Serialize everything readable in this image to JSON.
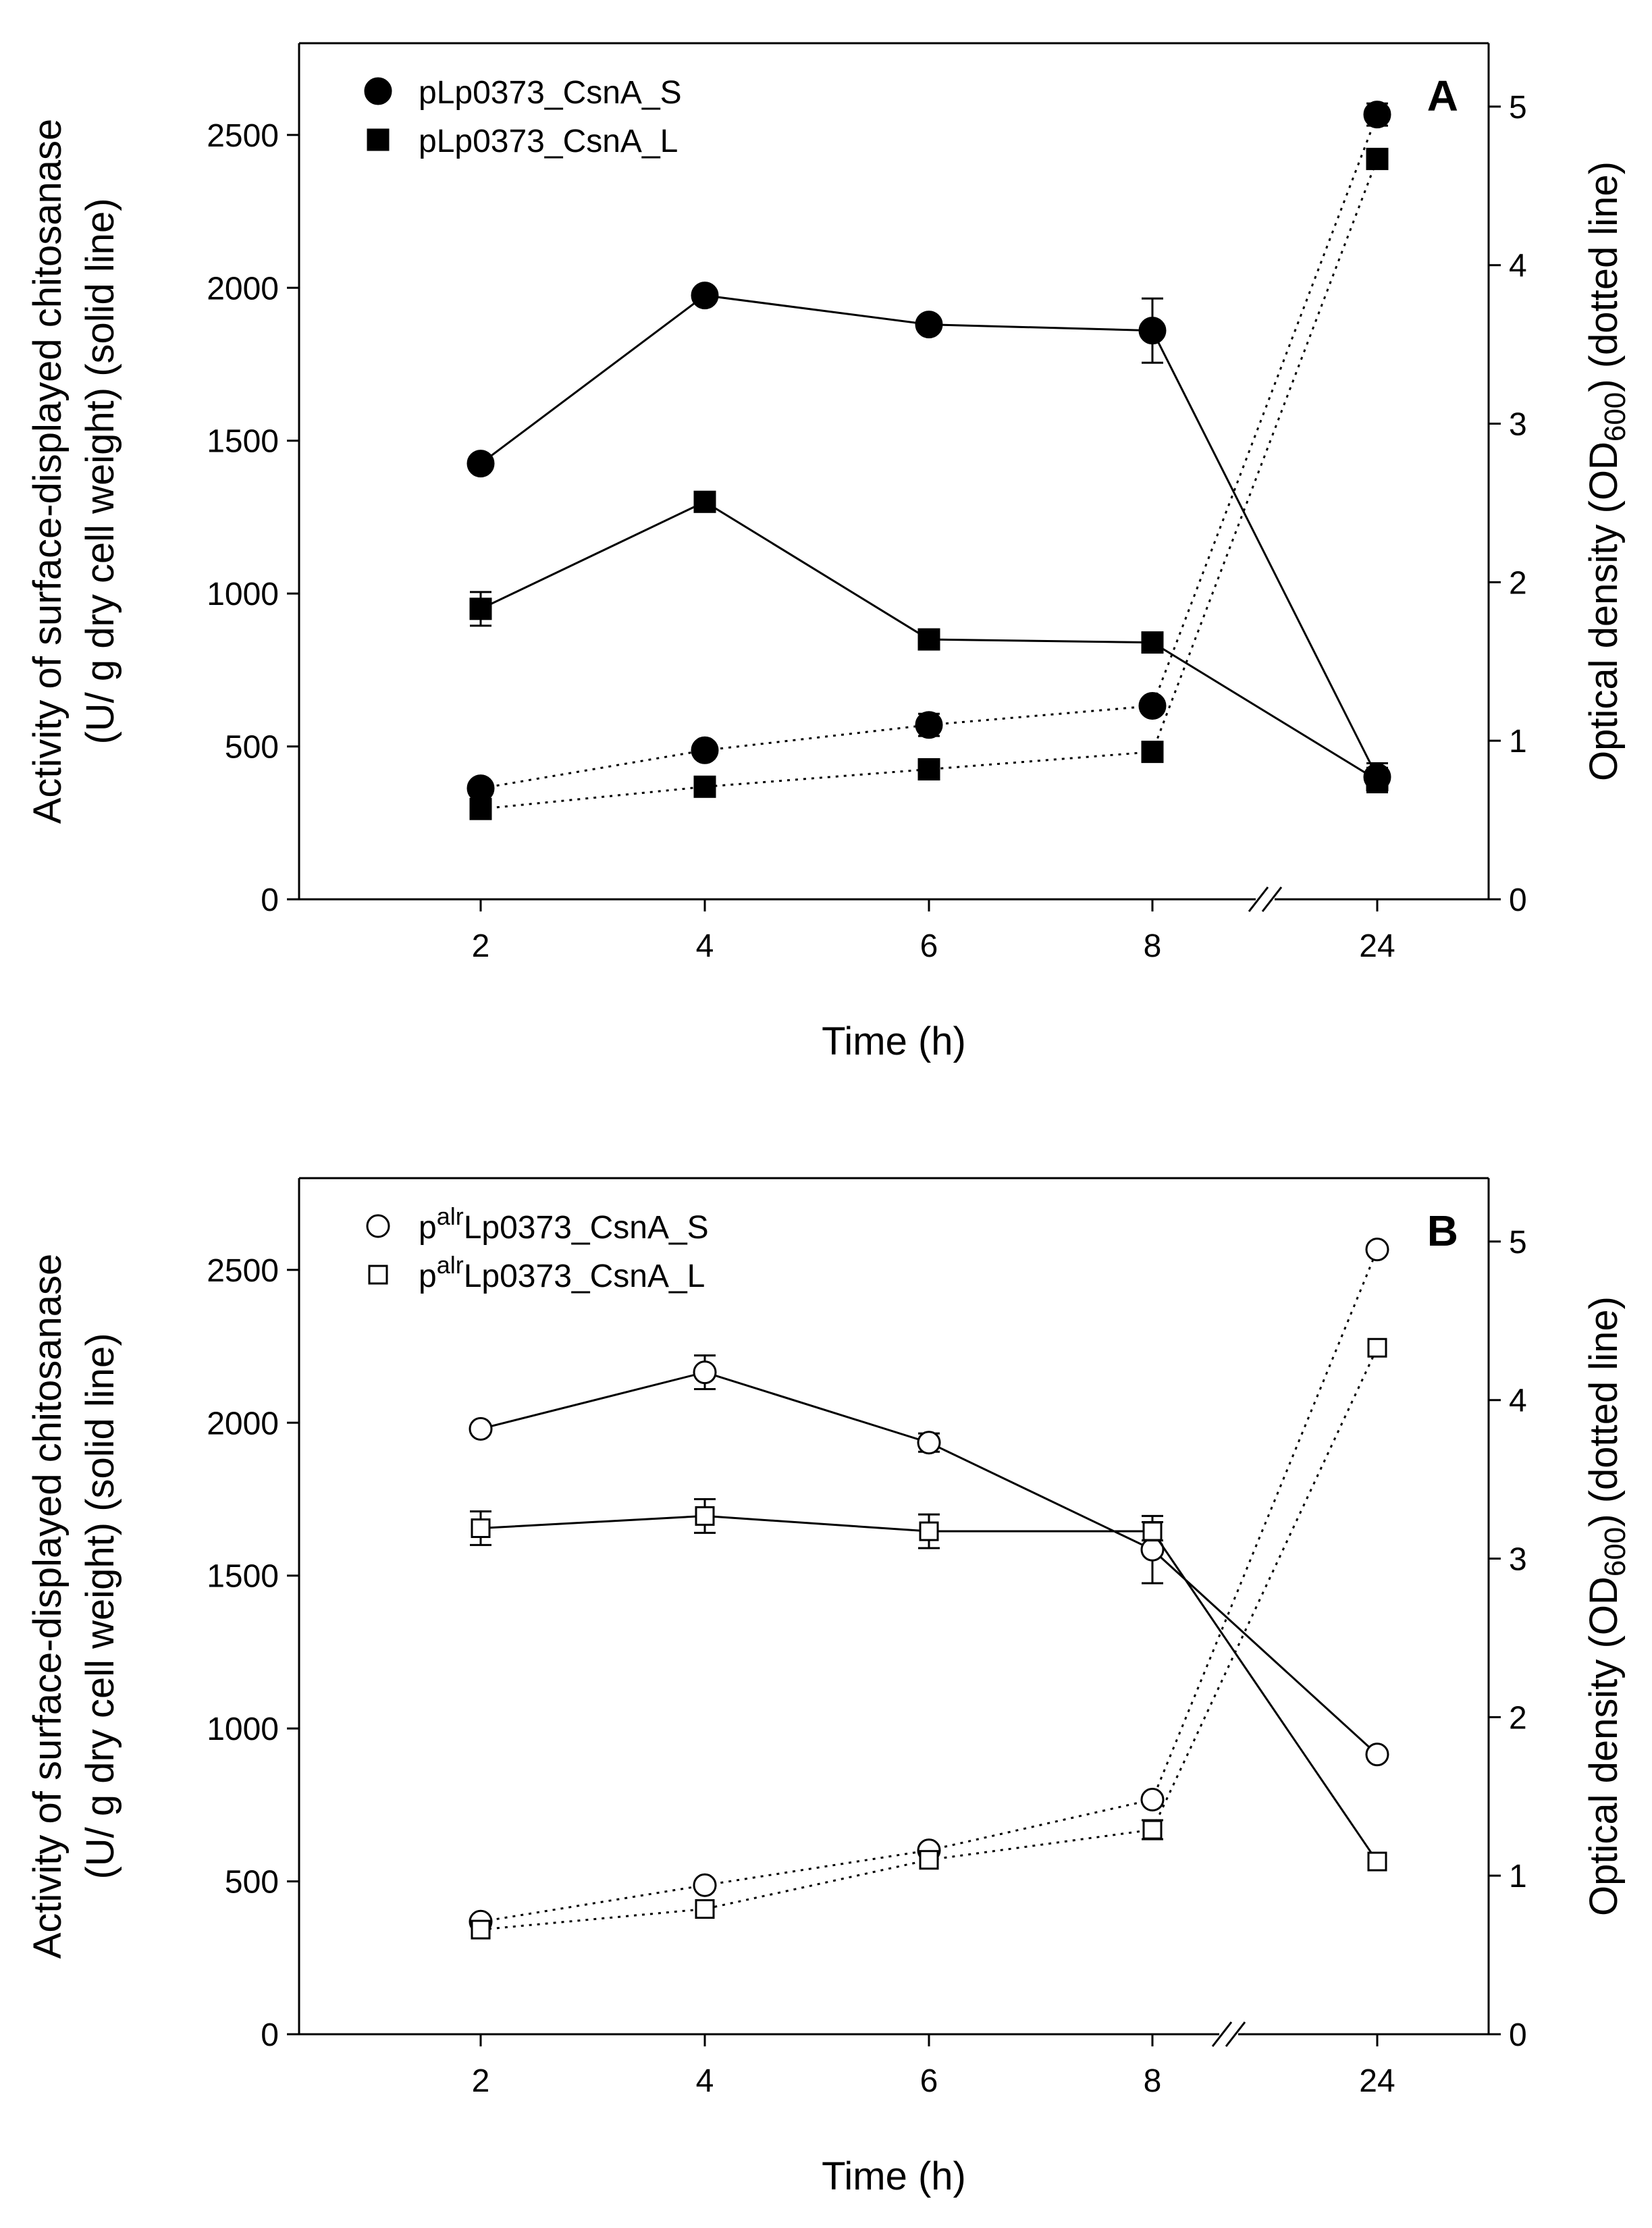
{
  "figure": {
    "xlabel": "Time (h)",
    "ylabel_left_line1": "Activity of surface-displayed chitosanase",
    "ylabel_left_line2": "(U/ g dry cell weight) (solid line)",
    "ylabel_right_prefix": "Optical density (OD",
    "ylabel_right_subscript": "600",
    "ylabel_right_suffix": ") (dotted line)",
    "axis_break_symbol": "//"
  },
  "chart_data": [
    {
      "panel": "A",
      "type": "line",
      "x_categories": [
        "2",
        "4",
        "6",
        "8",
        "24"
      ],
      "xlabel": "Time (h)",
      "ylabel_left": "Activity of surface-displayed chitosanase (U/ g dry cell weight) (solid line)",
      "ylabel_right": "Optical density (OD600) (dotted line)",
      "ylim_left": [
        0,
        2800
      ],
      "yticks_left": [
        0,
        500,
        1000,
        1500,
        2000,
        2500
      ],
      "ylim_right": [
        0,
        5.4
      ],
      "yticks_right": [
        0,
        1,
        2,
        3,
        4,
        5
      ],
      "axis_break": "between 8 and 24",
      "legend_position": "top-left",
      "series": [
        {
          "name": "pLp0373_CsnA_S",
          "legend_prefix": "pLp0373_CsnA_S",
          "legend_sup": "",
          "legend_suffix": "",
          "marker": "circle",
          "filled": true,
          "axis": "left",
          "line": "solid",
          "values": [
            1425,
            1975,
            1880,
            1860,
            400
          ],
          "errors": [
            0,
            0,
            0,
            105,
            45
          ]
        },
        {
          "name": "pLp0373_CsnA_L",
          "legend_prefix": "pLp0373_CsnA_L",
          "legend_sup": "",
          "legend_suffix": "",
          "marker": "square",
          "filled": true,
          "axis": "left",
          "line": "solid",
          "values": [
            950,
            1300,
            850,
            840,
            390
          ],
          "errors": [
            55,
            0,
            0,
            30,
            40
          ]
        },
        {
          "name": "pLp0373_CsnA_S OD600",
          "marker": "circle",
          "filled": true,
          "axis": "right",
          "line": "dotted",
          "in_legend": false,
          "values": [
            0.7,
            0.94,
            1.1,
            1.22,
            4.95
          ],
          "errors": [
            0,
            0.05,
            0.07,
            0,
            0.07
          ]
        },
        {
          "name": "pLp0373_CsnA_L OD600",
          "marker": "square",
          "filled": true,
          "axis": "right",
          "line": "dotted",
          "in_legend": false,
          "values": [
            0.57,
            0.71,
            0.82,
            0.93,
            4.67
          ],
          "errors": [
            0.04,
            0,
            0,
            0,
            0.03
          ]
        }
      ]
    },
    {
      "panel": "B",
      "type": "line",
      "x_categories": [
        "2",
        "4",
        "6",
        "8",
        "24"
      ],
      "xlabel": "Time (h)",
      "ylabel_left": "Activity of surface-displayed chitosanase (U/ g dry cell weight) (solid line)",
      "ylabel_right": "Optical density (OD600) (dotted line)",
      "ylim_left": [
        0,
        2800
      ],
      "yticks_left": [
        0,
        500,
        1000,
        1500,
        2000,
        2500
      ],
      "ylim_right": [
        0,
        5.4
      ],
      "yticks_right": [
        0,
        1,
        2,
        3,
        4,
        5
      ],
      "axis_break": "between 8 and 24",
      "legend_position": "top-left",
      "series": [
        {
          "name": "palrLp0373_CsnA_S",
          "legend_prefix": "p",
          "legend_sup": "alr",
          "legend_suffix": "Lp0373_CsnA_S",
          "marker": "circle",
          "filled": false,
          "axis": "left",
          "line": "solid",
          "values": [
            1980,
            2165,
            1935,
            1585,
            915
          ],
          "errors": [
            0,
            55,
            30,
            110,
            0
          ]
        },
        {
          "name": "palrLp0373_CsnA_L",
          "legend_prefix": "p",
          "legend_sup": "alr",
          "legend_suffix": "Lp0373_CsnA_L",
          "marker": "square",
          "filled": false,
          "axis": "left",
          "line": "solid",
          "values": [
            1655,
            1695,
            1645,
            1645,
            565
          ],
          "errors": [
            55,
            55,
            55,
            30,
            0
          ]
        },
        {
          "name": "palrLp0373_CsnA_S OD600",
          "marker": "circle",
          "filled": false,
          "axis": "right",
          "line": "dotted",
          "in_legend": false,
          "values": [
            0.71,
            0.94,
            1.16,
            1.48,
            4.95
          ],
          "errors": [
            0,
            0,
            0,
            0,
            0
          ]
        },
        {
          "name": "palrLp0373_CsnA_L OD600",
          "marker": "square",
          "filled": false,
          "axis": "right",
          "line": "dotted",
          "in_legend": false,
          "values": [
            0.66,
            0.79,
            1.1,
            1.29,
            4.33
          ],
          "errors": [
            0,
            0,
            0,
            0.06,
            0
          ]
        }
      ]
    }
  ]
}
